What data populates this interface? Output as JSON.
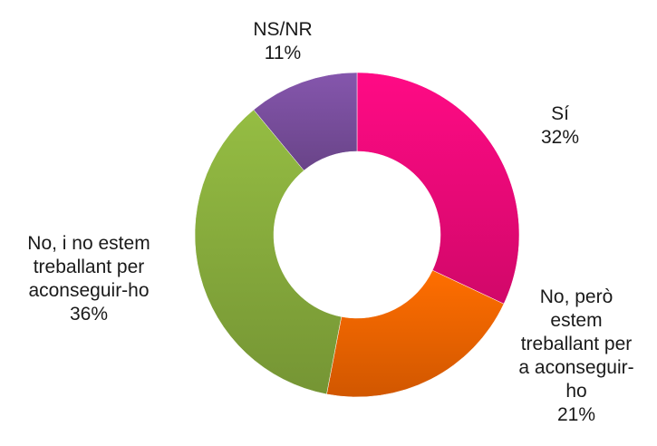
{
  "chart_data": {
    "type": "pie",
    "donut": true,
    "categories": [
      "Sí",
      "No, però estem treballant per a aconseguir-ho",
      "No, i no estem treballant per aconseguir-ho",
      "NS/NR"
    ],
    "values": [
      32,
      21,
      36,
      11
    ],
    "value_labels": [
      "32%",
      "21%",
      "36%",
      "11%"
    ],
    "label_lines": [
      [
        "Sí",
        "32%"
      ],
      [
        "No, però",
        "estem",
        "treballant per",
        "a aconseguir-",
        "ho",
        "21%"
      ],
      [
        "No, i no estem",
        "treballant per",
        "aconseguir-ho",
        "36%"
      ],
      [
        "NS/NR",
        "11%"
      ]
    ],
    "colors": [
      "#ff0a80",
      "#ff6a00",
      "#8fb640",
      "#8053a6"
    ],
    "legend": "none"
  }
}
